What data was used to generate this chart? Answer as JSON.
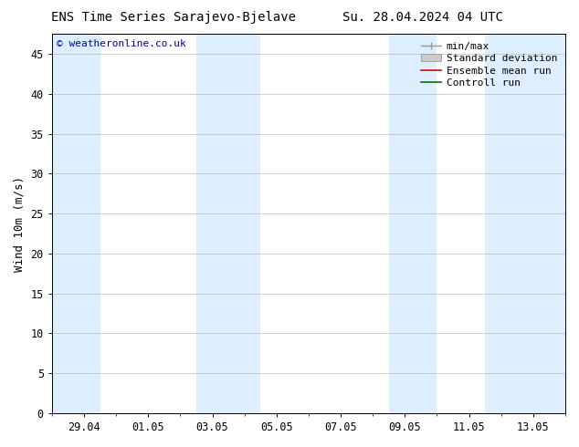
{
  "title_left": "ENS Time Series Sarajevo-Bjelave",
  "title_right": "Su. 28.04.2024 04 UTC",
  "ylabel": "Wind 10m (m/s)",
  "watermark": "© weatheronline.co.uk",
  "watermark_color": "#0000bb",
  "ylim": [
    0,
    47.5
  ],
  "yticks": [
    0,
    5,
    10,
    15,
    20,
    25,
    30,
    35,
    40,
    45
  ],
  "background_color": "#ffffff",
  "plot_bg_color": "#ffffff",
  "shaded_band_color": "#ddeeff",
  "grid_color": "#bbbbbb",
  "xlim": [
    0,
    16
  ],
  "x_tick_labels": [
    "29.04",
    "01.05",
    "03.05",
    "05.05",
    "07.05",
    "09.05",
    "11.05",
    "13.05"
  ],
  "x_tick_positions": [
    1,
    3,
    5,
    7,
    9,
    11,
    13,
    15
  ],
  "shaded_regions": [
    [
      0.0,
      1.5
    ],
    [
      4.5,
      6.5
    ],
    [
      10.5,
      12.0
    ],
    [
      13.5,
      16.0
    ]
  ],
  "legend_labels": [
    "min/max",
    "Standard deviation",
    "Ensemble mean run",
    "Controll run"
  ],
  "legend_colors_line": [
    "#999999",
    "#cccccc",
    "#dd0000",
    "#007700"
  ],
  "title_fontsize": 10,
  "axis_label_fontsize": 9,
  "tick_fontsize": 8.5,
  "watermark_fontsize": 8,
  "legend_fontsize": 8
}
